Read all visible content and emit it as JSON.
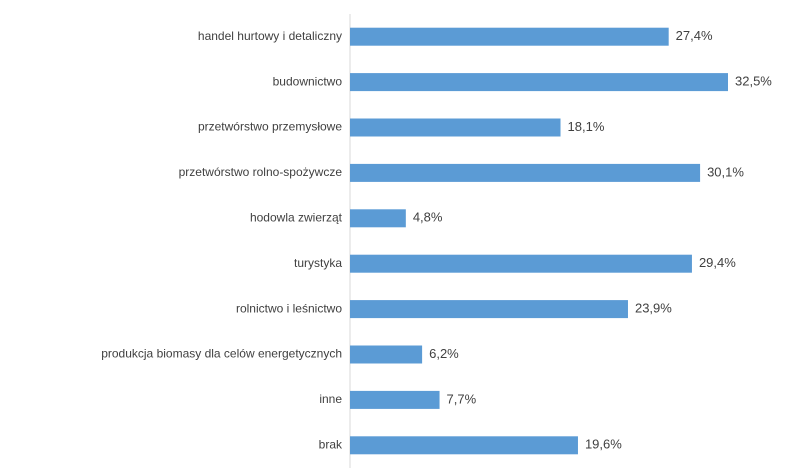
{
  "chart_data": {
    "type": "bar",
    "orientation": "horizontal",
    "categories": [
      "handel hurtowy i detaliczny",
      "budownictwo",
      "przetwórstwo przemysłowe",
      "przetwórstwo rolno-spożywcze",
      "hodowla zwierząt",
      "turystyka",
      "rolnictwo i leśnictwo",
      "produkcja biomasy dla celów energetycznych",
      "inne",
      "brak"
    ],
    "values": [
      27.4,
      32.5,
      18.1,
      30.1,
      4.8,
      29.4,
      23.9,
      6.2,
      7.7,
      19.6
    ],
    "value_labels": [
      "27,4%",
      "32,5%",
      "18,1%",
      "30,1%",
      "4,8%",
      "29,4%",
      "23,9%",
      "6,2%",
      "7,7%",
      "19,6%"
    ],
    "unit": "%",
    "title": "",
    "xlabel": "",
    "ylabel": "",
    "xlim": [
      0,
      35
    ],
    "grid": false,
    "legend": "none",
    "colors": {
      "bar": "#5B9BD5",
      "axis": "#D9D9D9",
      "text": "#404040"
    }
  }
}
